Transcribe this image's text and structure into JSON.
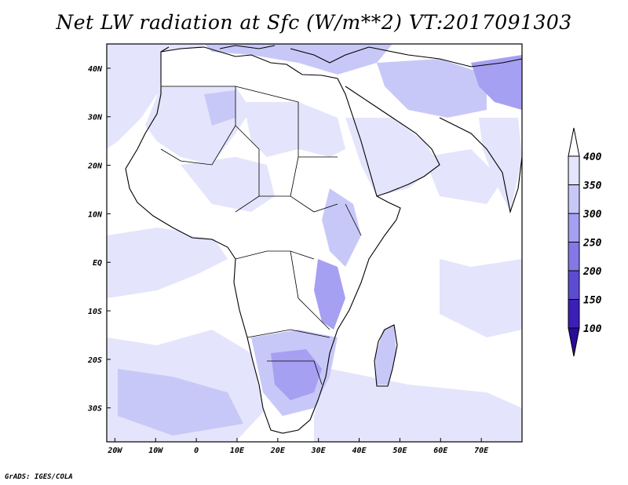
{
  "title": "Net LW radiation at Sfc (W/m**2) VT:2017091303",
  "footer": "GrADS: IGES/COLA",
  "map": {
    "lon_range": [
      -22,
      80
    ],
    "lat_range": [
      -37,
      45
    ],
    "x_ticks": [
      {
        "lon": -20,
        "label": "20W"
      },
      {
        "lon": -10,
        "label": "10W"
      },
      {
        "lon": 0,
        "label": "0"
      },
      {
        "lon": 10,
        "label": "10E"
      },
      {
        "lon": 20,
        "label": "20E"
      },
      {
        "lon": 30,
        "label": "30E"
      },
      {
        "lon": 40,
        "label": "40E"
      },
      {
        "lon": 50,
        "label": "50E"
      },
      {
        "lon": 60,
        "label": "60E"
      },
      {
        "lon": 70,
        "label": "70E"
      }
    ],
    "y_ticks": [
      {
        "lat": 40,
        "label": "40N"
      },
      {
        "lat": 30,
        "label": "30N"
      },
      {
        "lat": 20,
        "label": "20N"
      },
      {
        "lat": 10,
        "label": "10N"
      },
      {
        "lat": 0,
        "label": "EQ"
      },
      {
        "lat": -10,
        "label": "10S"
      },
      {
        "lat": -20,
        "label": "20S"
      },
      {
        "lat": -30,
        "label": "30S"
      }
    ]
  },
  "colorbar": {
    "levels": [
      {
        "label": "400"
      },
      {
        "label": "350"
      },
      {
        "label": "300"
      },
      {
        "label": "250"
      },
      {
        "label": "200"
      },
      {
        "label": "150"
      },
      {
        "label": "100"
      }
    ],
    "colors": [
      "#ffffff",
      "#e4e4fc",
      "#c8c8f8",
      "#a6a0f2",
      "#8478e6",
      "#5c4cd2",
      "#3c1fb8",
      "#2a0a9a"
    ]
  }
}
